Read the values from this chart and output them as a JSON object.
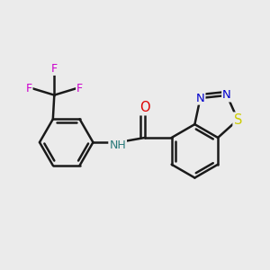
{
  "bg_color": "#ebebeb",
  "bond_color": "#1a1a1a",
  "bond_width": 1.8,
  "dbo": 0.04,
  "atom_colors": {
    "F": "#cc00cc",
    "N": "#0000cc",
    "O": "#dd0000",
    "S": "#cccc00",
    "NH": "#2a7a7a",
    "C": "#1a1a1a"
  },
  "fs": 9.5,
  "fig_size": [
    3.0,
    3.0
  ],
  "dpi": 100,
  "xlim": [
    -1.55,
    1.45
  ],
  "ylim": [
    -1.15,
    1.15
  ]
}
